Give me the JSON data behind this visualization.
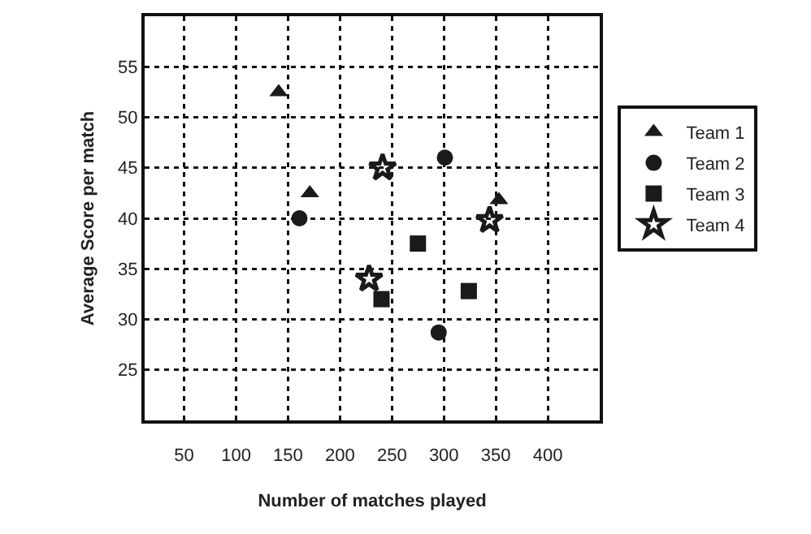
{
  "chart_data": {
    "type": "scatter",
    "xlabel": "Number of matches played",
    "ylabel": "Average Score per match",
    "xlim": [
      12,
      450
    ],
    "xticks": [
      50,
      100,
      150,
      200,
      250,
      300,
      350,
      400
    ],
    "ylim": [
      20,
      60
    ],
    "yticks": [
      25,
      30,
      35,
      40,
      45,
      50,
      55
    ],
    "grid": true,
    "legend": "right",
    "series": [
      {
        "name": "Team 1",
        "color": "#1a1a1a",
        "marker": "triangle",
        "x": [
          141,
          171,
          353
        ],
        "values": [
          52.5,
          42.5,
          41.8
        ]
      },
      {
        "name": "Team 2",
        "color": "#1a1a1a",
        "marker": "circle",
        "x": [
          161,
          301,
          295
        ],
        "values": [
          40,
          46,
          28.7
        ]
      },
      {
        "name": "Team 3",
        "color": "#1a1a1a",
        "marker": "square",
        "x": [
          275,
          240,
          324
        ],
        "values": [
          37.5,
          32,
          32.8
        ]
      },
      {
        "name": "Team 4",
        "color": "#1a1a1a",
        "marker": "star",
        "x": [
          241,
          228,
          344
        ],
        "values": [
          45,
          34,
          39.8
        ]
      }
    ]
  }
}
